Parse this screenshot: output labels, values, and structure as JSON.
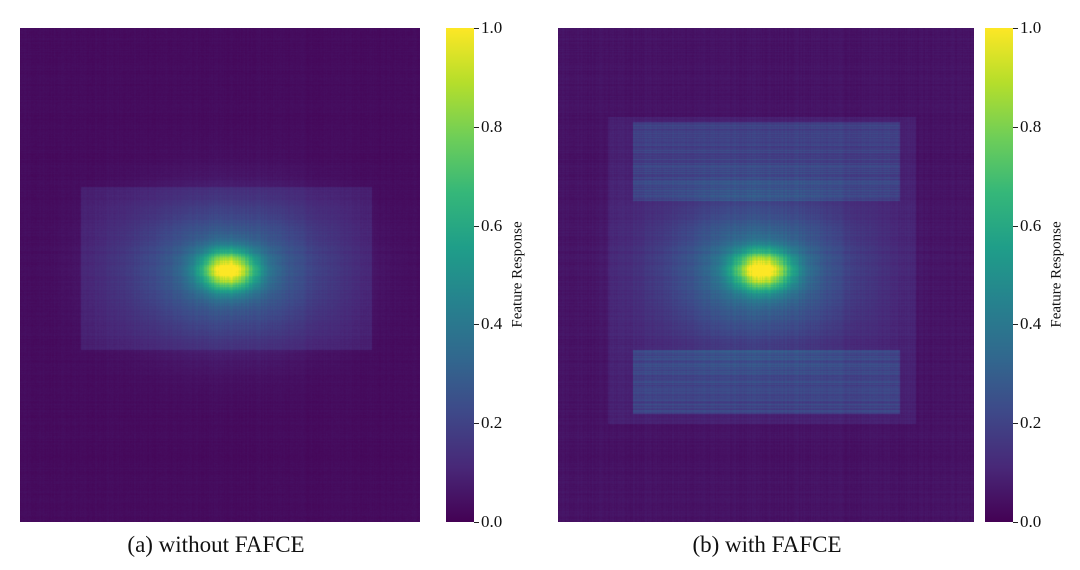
{
  "chart_data": [
    {
      "type": "heatmap",
      "panel": "a",
      "caption": "(a) without FAFCE",
      "colorbar_label": "Feature Response",
      "colormap": "viridis",
      "colorbar_ticks": [
        "0.0",
        "0.2",
        "0.4",
        "0.6",
        "0.8",
        "1.0"
      ],
      "vmin": 0.0,
      "vmax": 1.0,
      "peak_value": 1.0,
      "background_value": 0.03
    },
    {
      "type": "heatmap",
      "panel": "b",
      "caption": "(b) with FAFCE",
      "colorbar_label": "Feature Response",
      "colormap": "viridis",
      "colorbar_ticks": [
        "0.0",
        "0.2",
        "0.4",
        "0.6",
        "0.8",
        "1.0"
      ],
      "vmin": 0.0,
      "vmax": 1.0,
      "peak_value": 1.0,
      "background_value": 0.05
    }
  ]
}
